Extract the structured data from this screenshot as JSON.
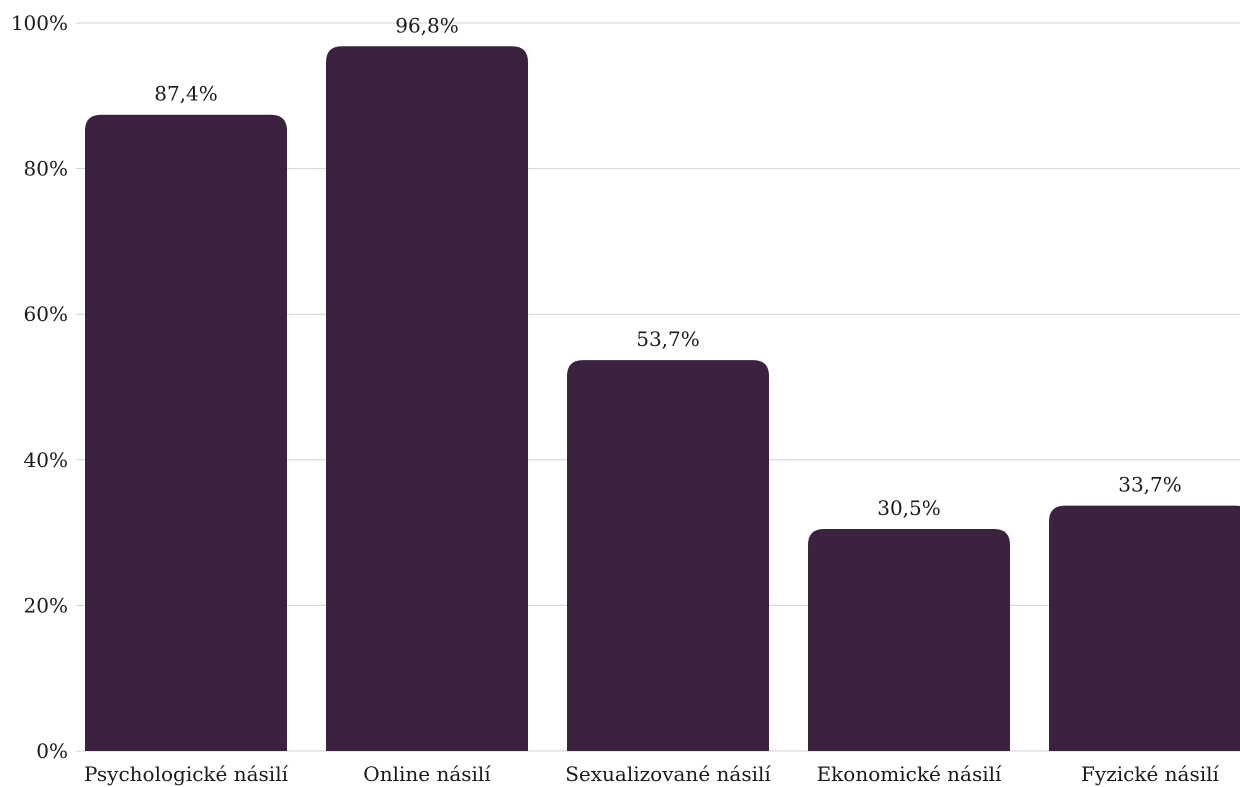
{
  "chart_data": {
    "type": "bar",
    "categories": [
      "Psychologické násilí",
      "Online násilí",
      "Sexualizované násilí",
      "Ekonomické násilí",
      "Fyzické násilí"
    ],
    "values": [
      87.4,
      96.8,
      53.7,
      30.5,
      33.7
    ],
    "value_labels": [
      "87,4%",
      "96,8%",
      "53,7%",
      "30,5%",
      "33,7%"
    ],
    "y_ticks": [
      0,
      20,
      40,
      60,
      80,
      100
    ],
    "y_tick_labels": [
      "0%",
      "20%",
      "40%",
      "60%",
      "80%",
      "100%"
    ],
    "ylim": [
      0,
      100
    ],
    "grid": true,
    "legend": "none",
    "bar_color": "#3b2340",
    "grid_color": "#d0d0d0"
  }
}
